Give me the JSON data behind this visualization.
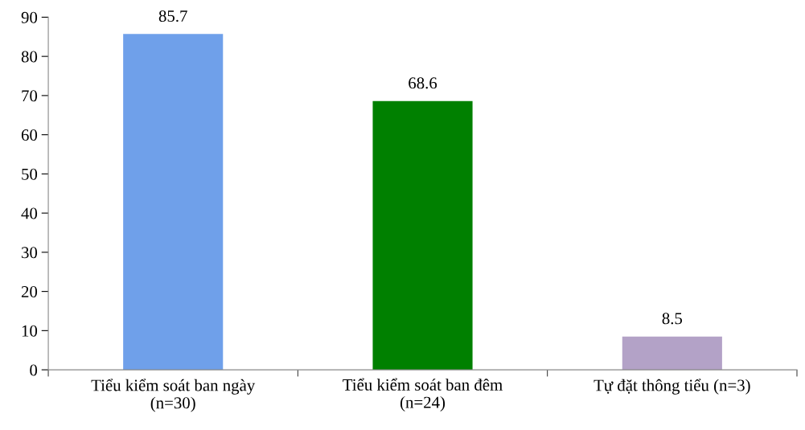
{
  "chart_data": {
    "type": "bar",
    "categories": [
      "Tiểu kiểm soát ban ngày\n(n=30)",
      "Tiểu kiểm soát ban đêm\n(n=24)",
      "Tự đặt thông tiểu (n=3)"
    ],
    "values": [
      85.7,
      68.6,
      8.5
    ],
    "colors": [
      "#6fa0ea",
      "#008000",
      "#b3a2c7"
    ],
    "ylim": [
      0,
      90
    ],
    "yticks": [
      0,
      10,
      20,
      30,
      40,
      50,
      60,
      70,
      80,
      90
    ],
    "data_labels": true,
    "grid": false
  }
}
